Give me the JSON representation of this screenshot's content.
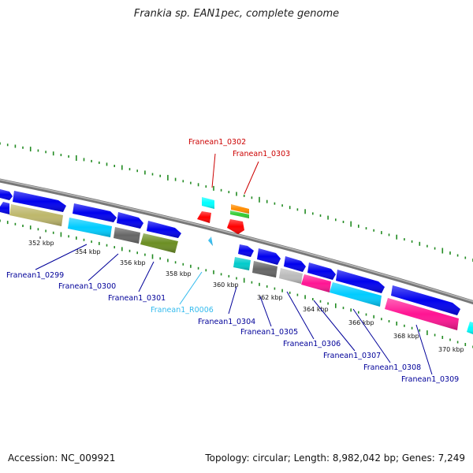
{
  "title": "Frankia sp. EAN1pec, complete genome",
  "footer": {
    "accession": "Accession: NC_009921",
    "summary": "Topology: circular; Length: 8,982,042 bp; Genes: 7,249"
  },
  "colors": {
    "backbone": "#808080",
    "gc_marks": "#228b22",
    "label_blue": "#0000a0",
    "label_red": "#cc0000",
    "label_cyan": "#33bbee"
  },
  "ticks": [
    "352 kbp",
    "354 kbp",
    "356 kbp",
    "358 kbp",
    "360 kbp",
    "362 kbp",
    "364 kbp",
    "366 kbp",
    "368 kbp",
    "370 kbp"
  ],
  "labels": [
    {
      "id": "f0299",
      "text": "Franean1_0299",
      "color": "#000099"
    },
    {
      "id": "f0300",
      "text": "Franean1_0300",
      "color": "#000099"
    },
    {
      "id": "f0301",
      "text": "Franean1_0301",
      "color": "#000099"
    },
    {
      "id": "r0006",
      "text": "Franean1_R0006",
      "color": "#33bbee"
    },
    {
      "id": "f0302",
      "text": "Franean1_0302",
      "color": "#cc0000"
    },
    {
      "id": "f0303",
      "text": "Franean1_0303",
      "color": "#cc0000"
    },
    {
      "id": "f0304",
      "text": "Franean1_0304",
      "color": "#000099"
    },
    {
      "id": "f0305",
      "text": "Franean1_0305",
      "color": "#000099"
    },
    {
      "id": "f0306",
      "text": "Franean1_0306",
      "color": "#000099"
    },
    {
      "id": "f0307",
      "text": "Franean1_0307",
      "color": "#000099"
    },
    {
      "id": "f0308",
      "text": "Franean1_0308",
      "color": "#000099"
    },
    {
      "id": "f0309",
      "text": "Franean1_0309",
      "color": "#000099"
    }
  ],
  "genes": [
    {
      "id": "g_a",
      "strand": "forward",
      "color": "#0000ee"
    },
    {
      "id": "g_b",
      "strand": "forward",
      "color": "#0000ee"
    },
    {
      "id": "g_c",
      "strand": "reverse",
      "color": "#0000ee"
    },
    {
      "id": "g_d",
      "strand": "reverse",
      "color": "#bdb76b"
    },
    {
      "id": "g_e",
      "strand": "forward",
      "color": "#0000ee"
    },
    {
      "id": "g_f",
      "strand": "forward",
      "color": "#0000ee"
    },
    {
      "id": "g_g",
      "strand": "forward",
      "color": "#0000ee"
    },
    {
      "id": "g_0300",
      "strand": "reverse",
      "color": "#00ccff"
    },
    {
      "id": "g_0301",
      "strand": "reverse",
      "color": "#666666"
    },
    {
      "id": "g_0301b",
      "strand": "reverse",
      "color": "#6b8e23"
    },
    {
      "id": "g_0302",
      "strand": "forward",
      "color": "#00ffff"
    },
    {
      "id": "g_0302r",
      "strand": "reverse",
      "color": "#ff0000"
    },
    {
      "id": "g_0303o",
      "strand": "forward",
      "color": "#ff8c00"
    },
    {
      "id": "g_0303g",
      "strand": "forward",
      "color": "#33cc33"
    },
    {
      "id": "g_0303r",
      "strand": "reverse",
      "color": "#ff0000"
    },
    {
      "id": "g_r0006",
      "strand": "reverse",
      "color": "#33bbee"
    },
    {
      "id": "g_h",
      "strand": "forward",
      "color": "#0000ee"
    },
    {
      "id": "g_i",
      "strand": "forward",
      "color": "#0000ee"
    },
    {
      "id": "g_j",
      "strand": "forward",
      "color": "#0000ee"
    },
    {
      "id": "g_k",
      "strand": "forward",
      "color": "#0000ee"
    },
    {
      "id": "g_l",
      "strand": "forward",
      "color": "#0000ee"
    },
    {
      "id": "g_m",
      "strand": "forward",
      "color": "#0000ee"
    },
    {
      "id": "g_0304",
      "strand": "reverse",
      "color": "#00cccc"
    },
    {
      "id": "g_0305",
      "strand": "reverse",
      "color": "#666666"
    },
    {
      "id": "g_0306",
      "strand": "reverse",
      "color": "#bbbbbb"
    },
    {
      "id": "g_0307",
      "strand": "reverse",
      "color": "#ff1493"
    },
    {
      "id": "g_0308",
      "strand": "reverse",
      "color": "#00ccff"
    },
    {
      "id": "g_0309",
      "strand": "reverse",
      "color": "#ff1493"
    },
    {
      "id": "g_end",
      "strand": "reverse",
      "color": "#00ffff"
    }
  ]
}
